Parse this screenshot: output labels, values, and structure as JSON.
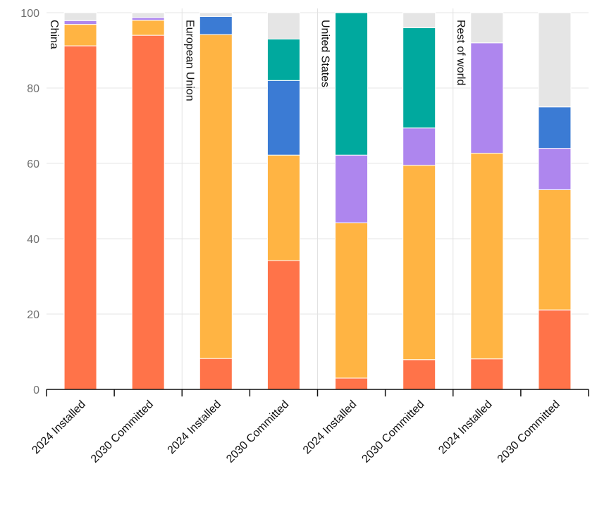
{
  "chart_data": {
    "type": "bar",
    "stacked": true,
    "ylim": [
      0,
      100
    ],
    "yticks": [
      0,
      20,
      40,
      60,
      80,
      100
    ],
    "grid": true,
    "legend": "none",
    "groups": [
      {
        "name": "China",
        "bars": [
          {
            "category": "2024 Installed",
            "segments": [
              91.2,
              5.7,
              1.0,
              0.0,
              0.0,
              2.1
            ]
          },
          {
            "category": "2030 Committed",
            "segments": [
              94.0,
              4.0,
              0.7,
              0.0,
              0.0,
              1.3
            ]
          }
        ]
      },
      {
        "name": "European Union",
        "bars": [
          {
            "category": "2024 Installed",
            "segments": [
              8.2,
              86.0,
              0.0,
              4.8,
              0.0,
              1.0
            ]
          },
          {
            "category": "2030 Committed",
            "segments": [
              34.2,
              28.0,
              0.0,
              19.8,
              11.0,
              7.0
            ]
          }
        ]
      },
      {
        "name": "United States",
        "bars": [
          {
            "category": "2024 Installed",
            "segments": [
              3.0,
              41.2,
              18.0,
              0.0,
              37.8,
              0.0
            ]
          },
          {
            "category": "2030 Committed",
            "segments": [
              7.9,
              51.6,
              9.9,
              0.0,
              26.6,
              4.0
            ]
          }
        ]
      },
      {
        "name": "Rest of world",
        "bars": [
          {
            "category": "2024 Installed",
            "segments": [
              8.1,
              54.6,
              29.3,
              0.0,
              0.0,
              8.0
            ]
          },
          {
            "category": "2030 Committed",
            "segments": [
              21.1,
              31.9,
              11.0,
              11.0,
              0.0,
              25.0
            ]
          }
        ]
      }
    ],
    "segment_colors": [
      "#ff7349",
      "#ffb443",
      "#ae86ee",
      "#3b7bd4",
      "#00a99e",
      "#e5e5e5"
    ]
  }
}
